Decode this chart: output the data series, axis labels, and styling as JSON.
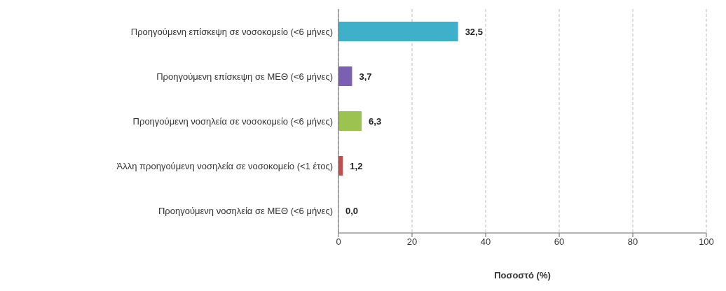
{
  "chart_data": {
    "type": "bar",
    "orientation": "horizontal",
    "xlabel": "Ποσοστό (%)",
    "categories": [
      "Προηγούμενη επίσκεψη σε νοσοκομείο (<6 μήνες)",
      "Προηγούμενη επίσκεψη σε ΜΕΘ (<6 μήνες)",
      "Προηγούμενη νοσηλεία σε νοσοκομείο (<6 μήνες)",
      "Άλλη προηγούμενη νοσηλεία σε νοσοκομείο (<1 έτος)",
      "Προηγούμενη νοσηλεία σε ΜΕΘ (<6 μήνες)"
    ],
    "values": [
      32.5,
      3.7,
      6.3,
      1.2,
      0.0
    ],
    "colors": [
      "#3fb0c9",
      "#7b5fb0",
      "#9bc34f",
      "#c0504d",
      "#4f81bd"
    ],
    "value_labels": [
      "32,5",
      "3,7",
      "6,3",
      "1,2",
      "0,0"
    ],
    "xlim": [
      0,
      100
    ],
    "xticks": [
      0,
      20,
      40,
      60,
      80,
      100
    ],
    "grid": "x"
  }
}
